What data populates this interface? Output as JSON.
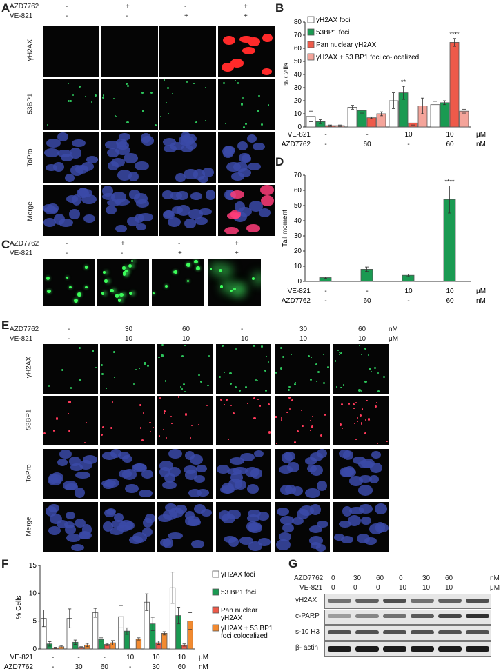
{
  "panels": {
    "A": "A",
    "B": "B",
    "C": "C",
    "D": "D",
    "E": "E",
    "F": "F",
    "G": "G"
  },
  "panelA": {
    "rows": [
      "γH2AX",
      "53BP1",
      "ToPro",
      "Merge"
    ],
    "cond_labels": [
      "AZD7762",
      "VE-821"
    ],
    "azd": [
      "-",
      "+",
      "-",
      "+"
    ],
    "ve": [
      "-",
      "-",
      "+",
      "+"
    ]
  },
  "panelC": {
    "cond_labels": [
      "AZD7762",
      "VE-821"
    ],
    "azd": [
      "-",
      "+",
      "-",
      "+"
    ],
    "ve": [
      "-",
      "-",
      "+",
      "+"
    ]
  },
  "panelE": {
    "rows": [
      "γH2AX",
      "53BP1",
      "ToPro",
      "Merge"
    ],
    "cond_labels": [
      "AZD7762",
      "VE-821"
    ],
    "azd": [
      "-",
      "30",
      "60",
      "-",
      "30",
      "60"
    ],
    "ve": [
      "-",
      "10",
      "10",
      "10",
      "10",
      "10"
    ],
    "units": [
      "nM",
      "μM"
    ]
  },
  "panelG": {
    "cond_labels": [
      "AZD7762",
      "VE-821"
    ],
    "azd": [
      "0",
      "30",
      "60",
      "0",
      "30",
      "60"
    ],
    "ve": [
      "0",
      "0",
      "0",
      "10",
      "10",
      "10"
    ],
    "units": [
      "nM",
      "μM"
    ],
    "bands": [
      "γH2AX",
      "c-PARP",
      "s-10 H3",
      "β- actin"
    ]
  },
  "colors": {
    "white": "#ffffff",
    "green": "#1a9a52",
    "red": "#ee5a4a",
    "pink": "#f4a49a",
    "orange": "#f28a30",
    "nucleus": "#3b4aa8",
    "nucleus_red": "#ff2a3a"
  },
  "chart_data": [
    {
      "id": "B",
      "type": "bar",
      "ylabel": "% Cells",
      "ylim": [
        0,
        80
      ],
      "yticks": [
        0,
        10,
        20,
        30,
        40,
        50,
        60,
        70,
        80
      ],
      "categories": [
        "1",
        "2",
        "3",
        "4"
      ],
      "cond_rows": [
        {
          "label": "VE-821",
          "values": [
            "-",
            "-",
            "10",
            "10"
          ],
          "unit": "μM"
        },
        {
          "label": "AZD7762",
          "values": [
            "-",
            "60",
            "-",
            "60"
          ],
          "unit": "nM"
        }
      ],
      "series": [
        {
          "name": "γH2AX foci",
          "color": "#ffffff",
          "values": [
            8,
            15,
            20,
            17
          ],
          "errors": [
            4,
            1.5,
            6,
            2.5
          ]
        },
        {
          "name": "53BP1 foci",
          "color": "#1a9a52",
          "values": [
            4,
            12.5,
            26,
            18.5
          ],
          "errors": [
            1.5,
            2,
            5,
            1.5
          ]
        },
        {
          "name": "Pan nuclear γH2AX",
          "color": "#ee5a4a",
          "values": [
            1,
            7,
            3,
            64.5
          ],
          "errors": [
            0.5,
            0.7,
            1.5,
            3
          ]
        },
        {
          "name": "γH2AX  + 53 BP1 foci  co-localized",
          "color": "#f4a49a",
          "values": [
            1,
            10,
            16,
            12
          ],
          "errors": [
            0.5,
            1.5,
            6,
            1.5
          ]
        }
      ],
      "annotations": [
        {
          "category": 2,
          "series": 1,
          "text": "**"
        },
        {
          "category": 3,
          "series": 2,
          "text": "****"
        }
      ]
    },
    {
      "id": "D",
      "type": "bar",
      "ylabel": "Tail moment",
      "ylim": [
        0,
        70
      ],
      "yticks": [
        0,
        10,
        20,
        30,
        40,
        50,
        60,
        70
      ],
      "categories": [
        "1",
        "2",
        "3",
        "4"
      ],
      "cond_rows": [
        {
          "label": "VE-821",
          "values": [
            "-",
            "-",
            "10",
            "10"
          ],
          "unit": "μM"
        },
        {
          "label": "AZD7762",
          "values": [
            "-",
            "60",
            "-",
            "60"
          ],
          "unit": "nM"
        }
      ],
      "series": [
        {
          "color": "#1a9a52",
          "values": [
            2.5,
            8,
            4,
            54
          ],
          "errors": [
            0.5,
            1.5,
            0.8,
            9
          ]
        }
      ],
      "annotations": [
        {
          "category": 3,
          "series": 0,
          "text": "****"
        }
      ]
    },
    {
      "id": "F",
      "type": "bar",
      "ylabel": "% Cells",
      "ylim": [
        0,
        15
      ],
      "yticks": [
        0,
        5,
        10,
        15
      ],
      "categories": [
        "1",
        "2",
        "3",
        "4",
        "5",
        "6"
      ],
      "cond_rows": [
        {
          "label": "VE-821",
          "values": [
            "-",
            "-",
            "-",
            "10",
            "10",
            "10"
          ],
          "unit": "μM"
        },
        {
          "label": "AZD7762",
          "values": [
            "-",
            "30",
            "60",
            "-",
            "30",
            "60"
          ],
          "unit": "nM"
        }
      ],
      "series": [
        {
          "name": "γH2AX foci",
          "color": "#ffffff",
          "values": [
            5.5,
            5.5,
            6.5,
            5.8,
            8.4,
            11
          ],
          "errors": [
            1.5,
            1.7,
            0.8,
            2,
            1.5,
            2.8
          ]
        },
        {
          "name": "53 BP1 foci",
          "color": "#1a9a52",
          "values": [
            0.9,
            1.2,
            1.7,
            3.2,
            4.5,
            6
          ],
          "errors": [
            0.4,
            0.4,
            0.3,
            0.6,
            1.2,
            1.5
          ]
        },
        {
          "name": "Pan nuclear γH2AX",
          "color": "#ee5a4a",
          "values": [
            0.2,
            0.3,
            0.8,
            0,
            1.1,
            0.7
          ],
          "errors": [
            0.1,
            0.1,
            0.2,
            0,
            0.3,
            0.2
          ]
        },
        {
          "name": "γH2AX + 53 BP1 foci colocalized",
          "color": "#f28a30",
          "values": [
            0.4,
            0.7,
            1.1,
            1.8,
            2.8,
            5
          ],
          "errors": [
            0.2,
            0.3,
            0.4,
            0.2,
            0.3,
            1.5
          ]
        }
      ]
    }
  ]
}
